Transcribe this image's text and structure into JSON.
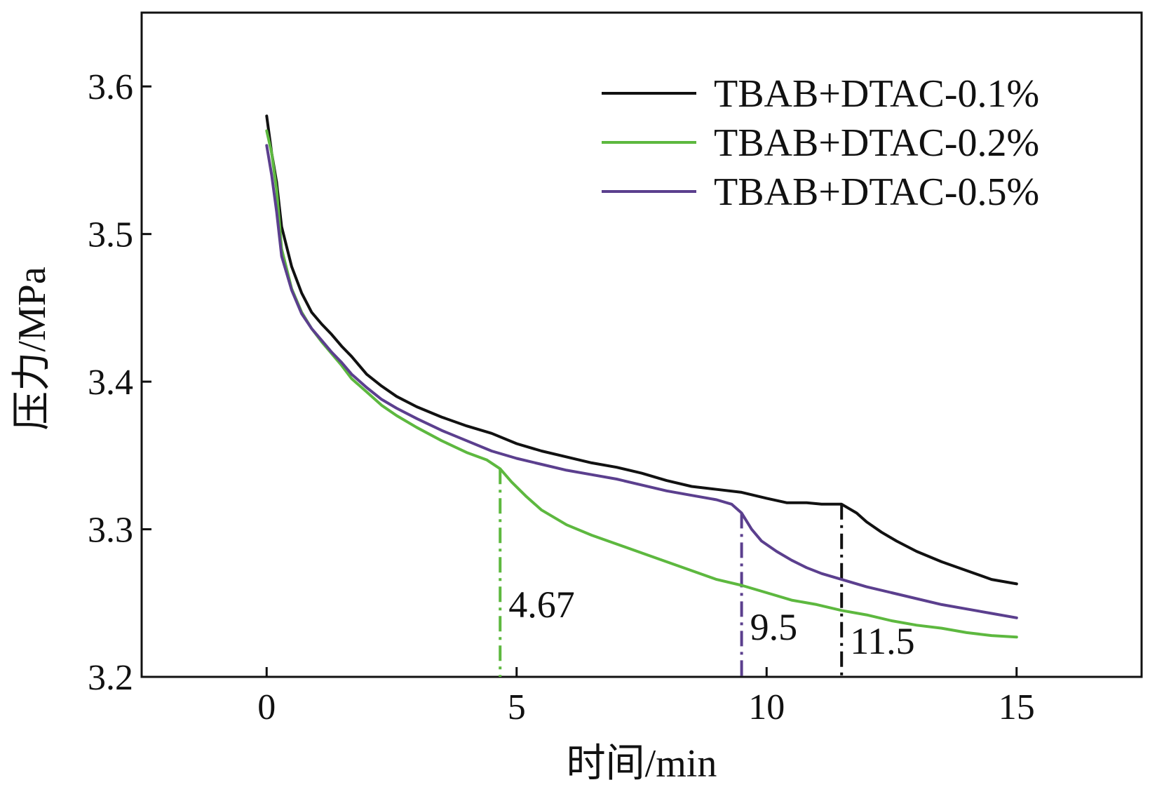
{
  "chart_data": {
    "type": "line",
    "title": "",
    "xlabel": "时间/min",
    "ylabel": "压力/MPa",
    "xlim": [
      -2.5,
      17.5
    ],
    "ylim": [
      3.2,
      3.65
    ],
    "xticks": [
      0,
      5,
      10,
      15
    ],
    "xtick_labels": [
      "0",
      "5",
      "10",
      "15"
    ],
    "yticks": [
      3.2,
      3.3,
      3.4,
      3.5,
      3.6
    ],
    "ytick_labels": [
      "3.2",
      "3.3",
      "3.4",
      "3.5",
      "3.6"
    ],
    "grid": false,
    "legend_position": "top-right",
    "series": [
      {
        "name": "TBAB+DTAC-0.1%",
        "color": "#111111",
        "x": [
          0,
          0.1,
          0.2,
          0.3,
          0.5,
          0.7,
          0.9,
          1.1,
          1.3,
          1.5,
          1.7,
          2.0,
          2.3,
          2.6,
          3.0,
          3.5,
          4.0,
          4.5,
          5.0,
          5.5,
          6.0,
          6.5,
          7.0,
          7.5,
          8.0,
          8.5,
          9.0,
          9.5,
          10.0,
          10.4,
          10.8,
          11.1,
          11.5,
          11.8,
          12.0,
          12.3,
          12.6,
          13.0,
          13.5,
          14.0,
          14.5,
          15.0
        ],
        "y": [
          3.58,
          3.555,
          3.535,
          3.505,
          3.478,
          3.46,
          3.447,
          3.439,
          3.432,
          3.424,
          3.417,
          3.405,
          3.397,
          3.39,
          3.383,
          3.376,
          3.37,
          3.365,
          3.358,
          3.353,
          3.349,
          3.345,
          3.342,
          3.338,
          3.333,
          3.329,
          3.327,
          3.325,
          3.321,
          3.318,
          3.318,
          3.317,
          3.317,
          3.311,
          3.305,
          3.298,
          3.292,
          3.285,
          3.278,
          3.272,
          3.266,
          3.263
        ]
      },
      {
        "name": "TBAB+DTAC-0.2%",
        "color": "#5db83f",
        "x": [
          0,
          0.1,
          0.2,
          0.3,
          0.5,
          0.7,
          0.9,
          1.1,
          1.3,
          1.5,
          1.7,
          2.0,
          2.3,
          2.6,
          3.0,
          3.5,
          4.0,
          4.4,
          4.67,
          4.9,
          5.2,
          5.5,
          6.0,
          6.5,
          7.0,
          7.5,
          8.0,
          8.5,
          9.0,
          9.5,
          10.0,
          10.5,
          11.0,
          11.5,
          12.0,
          12.5,
          13.0,
          13.5,
          14.0,
          14.5,
          15.0
        ],
        "y": [
          3.57,
          3.555,
          3.53,
          3.49,
          3.463,
          3.447,
          3.436,
          3.427,
          3.419,
          3.411,
          3.402,
          3.393,
          3.384,
          3.377,
          3.369,
          3.36,
          3.352,
          3.347,
          3.341,
          3.332,
          3.322,
          3.313,
          3.303,
          3.296,
          3.29,
          3.284,
          3.278,
          3.272,
          3.266,
          3.262,
          3.257,
          3.252,
          3.249,
          3.245,
          3.242,
          3.238,
          3.235,
          3.233,
          3.23,
          3.228,
          3.227
        ]
      },
      {
        "name": "TBAB+DTAC-0.5%",
        "color": "#5b3f8e",
        "x": [
          0,
          0.1,
          0.2,
          0.3,
          0.5,
          0.7,
          0.9,
          1.1,
          1.3,
          1.5,
          1.7,
          2.0,
          2.3,
          2.6,
          3.0,
          3.5,
          4.0,
          4.5,
          5.0,
          5.5,
          6.0,
          6.5,
          7.0,
          7.5,
          8.0,
          8.5,
          9.0,
          9.3,
          9.5,
          9.7,
          9.9,
          10.2,
          10.5,
          10.8,
          11.1,
          11.5,
          12.0,
          12.5,
          13.0,
          13.5,
          14.0,
          14.5,
          15.0
        ],
        "y": [
          3.56,
          3.54,
          3.515,
          3.485,
          3.462,
          3.446,
          3.436,
          3.428,
          3.42,
          3.413,
          3.405,
          3.396,
          3.388,
          3.382,
          3.375,
          3.367,
          3.36,
          3.353,
          3.348,
          3.344,
          3.34,
          3.337,
          3.334,
          3.33,
          3.326,
          3.323,
          3.32,
          3.317,
          3.311,
          3.3,
          3.292,
          3.285,
          3.279,
          3.274,
          3.27,
          3.266,
          3.261,
          3.257,
          3.253,
          3.249,
          3.246,
          3.243,
          3.24
        ]
      }
    ],
    "annotations": [
      {
        "label": "4.67",
        "x": 4.67,
        "color": "#5db83f",
        "y_top": 3.341
      },
      {
        "label": "9.5",
        "x": 9.5,
        "color": "#5b3f8e",
        "y_top": 3.311
      },
      {
        "label": "11.5",
        "x": 11.5,
        "color": "#111111",
        "y_top": 3.317
      }
    ]
  }
}
